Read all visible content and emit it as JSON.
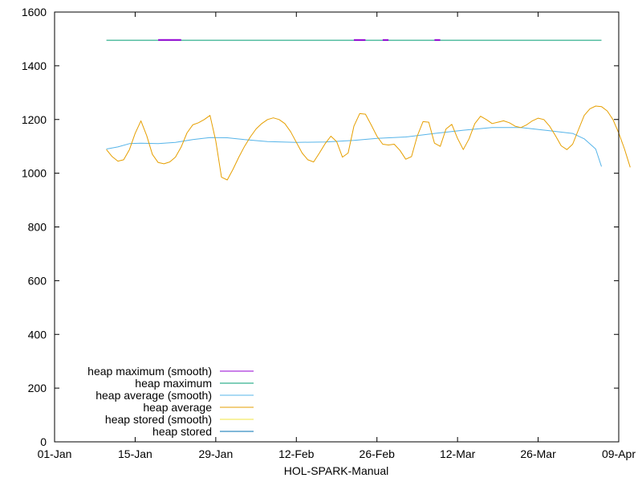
{
  "chart_data": {
    "type": "line",
    "title": "",
    "xlabel": "HOL-SPARK-Manual",
    "ylabel": "",
    "ylim": [
      0,
      1600
    ],
    "y_ticks": [
      0,
      200,
      400,
      600,
      800,
      1000,
      1200,
      1400,
      1600
    ],
    "x_range": [
      "2023-01-01",
      "2023-04-09"
    ],
    "x_ticks": [
      {
        "date": "2023-01-01",
        "label": "01-Jan"
      },
      {
        "date": "2023-01-15",
        "label": "15-Jan"
      },
      {
        "date": "2023-01-29",
        "label": "29-Jan"
      },
      {
        "date": "2023-02-12",
        "label": "12-Feb"
      },
      {
        "date": "2023-02-26",
        "label": "26-Feb"
      },
      {
        "date": "2023-03-12",
        "label": "12-Mar"
      },
      {
        "date": "2023-03-26",
        "label": "26-Mar"
      },
      {
        "date": "2023-04-09",
        "label": "09-Apr"
      }
    ],
    "grid": false,
    "legend_position": "bottom-left",
    "series": [
      {
        "name": "heap maximum (smooth)",
        "color": "#9400d3",
        "segments": [
          [
            [
              "2023-01-19",
              1496
            ],
            [
              "2023-01-23",
              1496
            ]
          ],
          [
            [
              "2023-02-22",
              1496
            ],
            [
              "2023-02-24",
              1496
            ]
          ],
          [
            [
              "2023-02-27",
              1496
            ],
            [
              "2023-02-28",
              1496
            ]
          ],
          [
            [
              "2023-03-08",
              1496
            ],
            [
              "2023-03-09",
              1496
            ]
          ]
        ]
      },
      {
        "name": "heap maximum",
        "color": "#009e73",
        "points": [
          [
            "2023-01-10",
            1495
          ],
          [
            "2023-04-06",
            1495
          ]
        ]
      },
      {
        "name": "heap average (smooth)",
        "color": "#56b4e9",
        "points": [
          [
            "2023-01-10",
            1090
          ],
          [
            "2023-01-12",
            1098
          ],
          [
            "2023-01-14",
            1110
          ],
          [
            "2023-01-16",
            1112
          ],
          [
            "2023-01-19",
            1110
          ],
          [
            "2023-01-22",
            1115
          ],
          [
            "2023-01-25",
            1125
          ],
          [
            "2023-01-28",
            1133
          ],
          [
            "2023-01-31",
            1132
          ],
          [
            "2023-02-03",
            1125
          ],
          [
            "2023-02-07",
            1118
          ],
          [
            "2023-02-12",
            1115
          ],
          [
            "2023-02-17",
            1116
          ],
          [
            "2023-02-22",
            1122
          ],
          [
            "2023-02-26",
            1130
          ],
          [
            "2023-03-03",
            1135
          ],
          [
            "2023-03-08",
            1148
          ],
          [
            "2023-03-13",
            1160
          ],
          [
            "2023-03-18",
            1170
          ],
          [
            "2023-03-23",
            1170
          ],
          [
            "2023-03-28",
            1158
          ],
          [
            "2023-04-01",
            1148
          ],
          [
            "2023-04-03",
            1128
          ],
          [
            "2023-04-05",
            1090
          ],
          [
            "2023-04-06",
            1025
          ]
        ]
      },
      {
        "name": "heap average",
        "color": "#e69f00",
        "points": [
          [
            "2023-01-10",
            1088
          ],
          [
            "2023-01-11",
            1062
          ],
          [
            "2023-01-12",
            1045
          ],
          [
            "2023-01-13",
            1050
          ],
          [
            "2023-01-14",
            1088
          ],
          [
            "2023-01-15",
            1148
          ],
          [
            "2023-01-16",
            1195
          ],
          [
            "2023-01-17",
            1140
          ],
          [
            "2023-01-18",
            1070
          ],
          [
            "2023-01-19",
            1040
          ],
          [
            "2023-01-20",
            1035
          ],
          [
            "2023-01-21",
            1042
          ],
          [
            "2023-01-22",
            1060
          ],
          [
            "2023-01-23",
            1098
          ],
          [
            "2023-01-24",
            1150
          ],
          [
            "2023-01-25",
            1180
          ],
          [
            "2023-01-26",
            1188
          ],
          [
            "2023-01-27",
            1200
          ],
          [
            "2023-01-28",
            1215
          ],
          [
            "2023-01-29",
            1120
          ],
          [
            "2023-01-30",
            985
          ],
          [
            "2023-01-31",
            975
          ],
          [
            "2023-02-01",
            1015
          ],
          [
            "2023-02-02",
            1060
          ],
          [
            "2023-02-03",
            1100
          ],
          [
            "2023-02-04",
            1135
          ],
          [
            "2023-02-05",
            1165
          ],
          [
            "2023-02-06",
            1185
          ],
          [
            "2023-02-07",
            1200
          ],
          [
            "2023-02-08",
            1206
          ],
          [
            "2023-02-09",
            1200
          ],
          [
            "2023-02-10",
            1185
          ],
          [
            "2023-02-11",
            1155
          ],
          [
            "2023-02-12",
            1115
          ],
          [
            "2023-02-13",
            1075
          ],
          [
            "2023-02-14",
            1050
          ],
          [
            "2023-02-15",
            1042
          ],
          [
            "2023-02-16",
            1075
          ],
          [
            "2023-02-17",
            1110
          ],
          [
            "2023-02-18",
            1138
          ],
          [
            "2023-02-19",
            1118
          ],
          [
            "2023-02-20",
            1060
          ],
          [
            "2023-02-21",
            1075
          ],
          [
            "2023-02-22",
            1175
          ],
          [
            "2023-02-23",
            1222
          ],
          [
            "2023-02-24",
            1220
          ],
          [
            "2023-02-25",
            1180
          ],
          [
            "2023-02-26",
            1138
          ],
          [
            "2023-02-27",
            1108
          ],
          [
            "2023-02-28",
            1105
          ],
          [
            "2023-03-01",
            1108
          ],
          [
            "2023-03-02",
            1085
          ],
          [
            "2023-03-03",
            1052
          ],
          [
            "2023-03-04",
            1062
          ],
          [
            "2023-03-05",
            1138
          ],
          [
            "2023-03-06",
            1192
          ],
          [
            "2023-03-07",
            1190
          ],
          [
            "2023-03-08",
            1112
          ],
          [
            "2023-03-09",
            1100
          ],
          [
            "2023-03-10",
            1165
          ],
          [
            "2023-03-11",
            1182
          ],
          [
            "2023-03-12",
            1130
          ],
          [
            "2023-03-13",
            1088
          ],
          [
            "2023-03-14",
            1128
          ],
          [
            "2023-03-15",
            1185
          ],
          [
            "2023-03-16",
            1212
          ],
          [
            "2023-03-17",
            1200
          ],
          [
            "2023-03-18",
            1185
          ],
          [
            "2023-03-19",
            1190
          ],
          [
            "2023-03-20",
            1195
          ],
          [
            "2023-03-21",
            1188
          ],
          [
            "2023-03-22",
            1175
          ],
          [
            "2023-03-23",
            1170
          ],
          [
            "2023-03-24",
            1180
          ],
          [
            "2023-03-25",
            1195
          ],
          [
            "2023-03-26",
            1205
          ],
          [
            "2023-03-27",
            1200
          ],
          [
            "2023-03-28",
            1175
          ],
          [
            "2023-03-29",
            1140
          ],
          [
            "2023-03-30",
            1102
          ],
          [
            "2023-03-31",
            1088
          ],
          [
            "2023-04-01",
            1108
          ],
          [
            "2023-04-02",
            1162
          ],
          [
            "2023-04-03",
            1215
          ],
          [
            "2023-04-04",
            1240
          ],
          [
            "2023-04-05",
            1250
          ],
          [
            "2023-04-06",
            1248
          ],
          [
            "2023-04-07",
            1232
          ],
          [
            "2023-04-08",
            1200
          ],
          [
            "2023-04-09",
            1150
          ],
          [
            "2023-04-10",
            1090
          ],
          [
            "2023-04-11",
            1022
          ]
        ]
      },
      {
        "name": "heap stored (smooth)",
        "color": "#f0e442",
        "points": []
      },
      {
        "name": "heap stored",
        "color": "#0072b2",
        "points": []
      }
    ]
  }
}
